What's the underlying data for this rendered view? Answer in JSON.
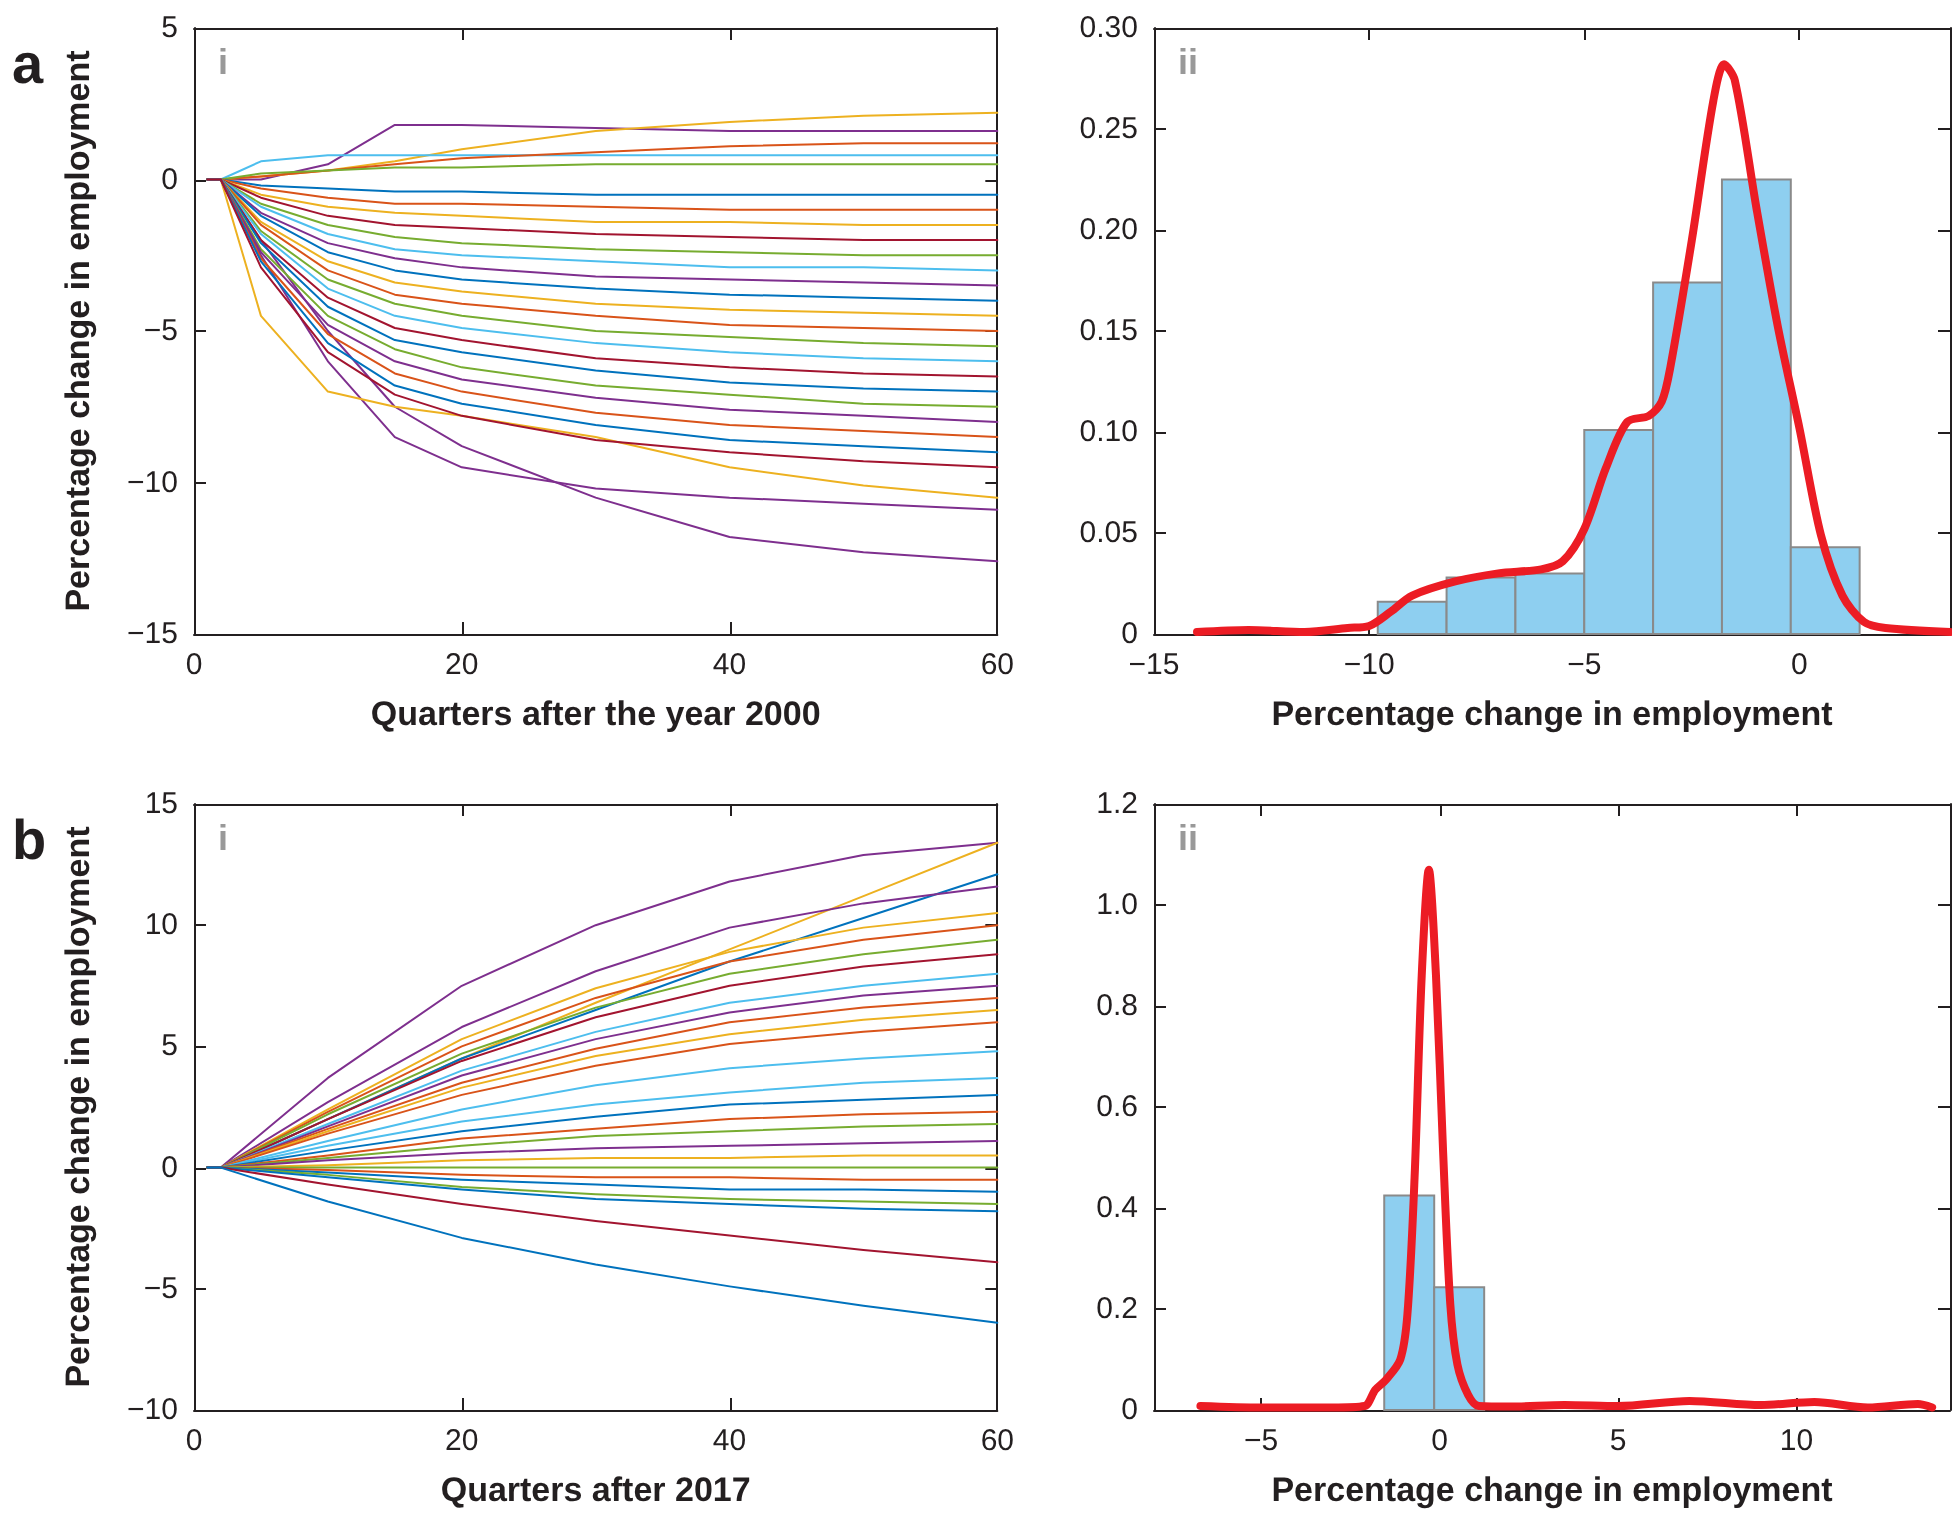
{
  "chart_data": [
    {
      "type": "line",
      "xlabel": "Quarters after the year 2000",
      "ylabel": "Percentage change in employment",
      "annotations": [
        "a",
        "i"
      ],
      "xlim": [
        0,
        60
      ],
      "xticks": [
        0,
        20,
        40,
        60
      ],
      "ylim": [
        -15,
        5
      ],
      "yticks": [
        {
          "value": -15,
          "label": "−15"
        },
        {
          "value": -10,
          "label": "−10"
        },
        {
          "value": -5,
          "label": "−5"
        },
        0,
        5
      ],
      "x": [
        1,
        2,
        5,
        10,
        15,
        20,
        30,
        40,
        50,
        60
      ],
      "series": [
        {
          "color": "#7e2f8e",
          "values": [
            0,
            0,
            -2.5,
            -6,
            -8.5,
            -9.5,
            -10.2,
            -10.5,
            -10.7,
            -10.9
          ]
        },
        {
          "color": "#7e2f8e",
          "values": [
            0,
            0,
            -2,
            -5,
            -7.5,
            -8.8,
            -10.5,
            -11.8,
            -12.3,
            -12.6
          ]
        },
        {
          "color": "#edb120",
          "values": [
            0,
            0,
            -4.5,
            -7,
            -7.5,
            -7.8,
            -8.5,
            -9.5,
            -10.1,
            -10.5
          ]
        },
        {
          "color": "#7e2f8e",
          "values": [
            0,
            0,
            0,
            0.5,
            1.8,
            1.8,
            1.7,
            1.6,
            1.6,
            1.6
          ]
        },
        {
          "color": "#edb120",
          "values": [
            0,
            0,
            0.1,
            0.3,
            0.6,
            1,
            1.6,
            1.9,
            2.1,
            2.2
          ]
        },
        {
          "color": "#4dbeee",
          "values": [
            0,
            0,
            0.6,
            0.8,
            0.8,
            0.8,
            0.8,
            0.8,
            0.8,
            0.8
          ]
        },
        {
          "color": "#d95319",
          "values": [
            0,
            0,
            0.1,
            0.3,
            0.5,
            0.7,
            0.9,
            1.1,
            1.2,
            1.2
          ]
        },
        {
          "color": "#77ac30",
          "values": [
            0,
            0,
            0.2,
            0.3,
            0.4,
            0.4,
            0.5,
            0.5,
            0.5,
            0.5
          ]
        },
        {
          "color": "#0072bd",
          "values": [
            0,
            0,
            -0.2,
            -0.3,
            -0.4,
            -0.4,
            -0.5,
            -0.5,
            -0.5,
            -0.5
          ]
        },
        {
          "color": "#d95319",
          "values": [
            0,
            0,
            -0.3,
            -0.6,
            -0.8,
            -0.8,
            -0.9,
            -1,
            -1,
            -1
          ]
        },
        {
          "color": "#edb120",
          "values": [
            0,
            0,
            -0.5,
            -0.9,
            -1.1,
            -1.2,
            -1.4,
            -1.4,
            -1.5,
            -1.5
          ]
        },
        {
          "color": "#a2142f",
          "values": [
            0,
            0,
            -0.6,
            -1.2,
            -1.5,
            -1.6,
            -1.8,
            -1.9,
            -2,
            -2
          ]
        },
        {
          "color": "#77ac30",
          "values": [
            0,
            0,
            -0.8,
            -1.5,
            -1.9,
            -2.1,
            -2.3,
            -2.4,
            -2.5,
            -2.5
          ]
        },
        {
          "color": "#4dbeee",
          "values": [
            0,
            0,
            -0.9,
            -1.8,
            -2.3,
            -2.5,
            -2.7,
            -2.9,
            -2.9,
            -3
          ]
        },
        {
          "color": "#7e2f8e",
          "values": [
            0,
            0,
            -1.1,
            -2.1,
            -2.6,
            -2.9,
            -3.2,
            -3.3,
            -3.4,
            -3.5
          ]
        },
        {
          "color": "#0072bd",
          "values": [
            0,
            0,
            -1.2,
            -2.4,
            -3,
            -3.3,
            -3.6,
            -3.8,
            -3.9,
            -4
          ]
        },
        {
          "color": "#edb120",
          "values": [
            0,
            0,
            -1.4,
            -2.7,
            -3.4,
            -3.7,
            -4.1,
            -4.3,
            -4.4,
            -4.5
          ]
        },
        {
          "color": "#d95319",
          "values": [
            0,
            0,
            -1.5,
            -3,
            -3.8,
            -4.1,
            -4.5,
            -4.8,
            -4.9,
            -5
          ]
        },
        {
          "color": "#77ac30",
          "values": [
            0,
            0,
            -1.7,
            -3.3,
            -4.1,
            -4.5,
            -5,
            -5.2,
            -5.4,
            -5.5
          ]
        },
        {
          "color": "#4dbeee",
          "values": [
            0,
            0,
            -1.8,
            -3.6,
            -4.5,
            -4.9,
            -5.4,
            -5.7,
            -5.9,
            -6
          ]
        },
        {
          "color": "#a2142f",
          "values": [
            0,
            0,
            -2,
            -3.9,
            -4.9,
            -5.3,
            -5.9,
            -6.2,
            -6.4,
            -6.5
          ]
        },
        {
          "color": "#0072bd",
          "values": [
            0,
            0,
            -2.1,
            -4.2,
            -5.3,
            -5.7,
            -6.3,
            -6.7,
            -6.9,
            -7
          ]
        },
        {
          "color": "#77ac30",
          "values": [
            0,
            0,
            -2.3,
            -4.5,
            -5.6,
            -6.2,
            -6.8,
            -7.1,
            -7.4,
            -7.5
          ]
        },
        {
          "color": "#7e2f8e",
          "values": [
            0,
            0,
            -2.4,
            -4.8,
            -6,
            -6.6,
            -7.2,
            -7.6,
            -7.8,
            -8
          ]
        },
        {
          "color": "#d95319",
          "values": [
            0,
            0,
            -2.6,
            -5.1,
            -6.4,
            -7,
            -7.7,
            -8.1,
            -8.3,
            -8.5
          ]
        },
        {
          "color": "#0072bd",
          "values": [
            0,
            0,
            -2.7,
            -5.4,
            -6.8,
            -7.4,
            -8.1,
            -8.6,
            -8.8,
            -9
          ]
        },
        {
          "color": "#a2142f",
          "values": [
            0,
            0,
            -2.9,
            -5.7,
            -7.1,
            -7.8,
            -8.6,
            -9,
            -9.3,
            -9.5
          ]
        }
      ]
    },
    {
      "type": "histogram",
      "xlabel": "Percentage change in employment",
      "annotations": [
        "ii"
      ],
      "xlim": [
        -15,
        3.5
      ],
      "xticks": [
        {
          "value": -15,
          "label": "−15"
        },
        {
          "value": -10,
          "label": "−10"
        },
        {
          "value": -5,
          "label": "−5"
        },
        0
      ],
      "ylim": [
        0,
        0.3
      ],
      "yticks": [
        0,
        0.05,
        {
          "value": 0.1,
          "label": "0.10"
        },
        0.15,
        {
          "value": 0.2,
          "label": "0.20"
        },
        0.25,
        {
          "value": 0.3,
          "label": "0.30"
        }
      ],
      "series": [
        {
          "type": "histogram",
          "color": "#8ecff0",
          "bins": [
            -9.8,
            -8.2,
            -6.6,
            -5,
            -3.4,
            -1.8,
            -0.2,
            1.4
          ],
          "values": [
            0.016,
            0.028,
            0.03,
            0.101,
            0.174,
            0.225,
            0.043
          ]
        },
        {
          "type": "line",
          "color": "#ec1c24",
          "x": [
            -14,
            -12.8,
            -11.5,
            -10.5,
            -10,
            -9.5,
            -9,
            -8,
            -7,
            -6,
            -5.5,
            -5,
            -4.5,
            -4,
            -3.5,
            -3.2,
            -3,
            -2.5,
            -2,
            -1.75,
            -1.5,
            -1,
            -0.5,
            0,
            0.5,
            1,
            1.5,
            2,
            3.5
          ],
          "values": [
            0.001,
            0.002,
            0.001,
            0.003,
            0.004,
            0.011,
            0.019,
            0.026,
            0.03,
            0.032,
            0.036,
            0.052,
            0.082,
            0.105,
            0.108,
            0.115,
            0.132,
            0.195,
            0.264,
            0.282,
            0.274,
            0.211,
            0.152,
            0.102,
            0.049,
            0.019,
            0.006,
            0.003,
            0.001
          ]
        }
      ]
    },
    {
      "type": "line",
      "xlabel": "Quarters after 2017",
      "ylabel": "Percentage change in employment",
      "annotations": [
        "b",
        "i"
      ],
      "xlim": [
        0,
        60
      ],
      "xticks": [
        0,
        20,
        40,
        60
      ],
      "ylim": [
        -10,
        15
      ],
      "yticks": [
        {
          "value": -10,
          "label": "−10"
        },
        {
          "value": -5,
          "label": "−5"
        },
        0,
        5,
        10,
        15
      ],
      "x": [
        1,
        2,
        10,
        20,
        30,
        40,
        50,
        60
      ],
      "series": [
        {
          "color": "#7e2f8e",
          "values": [
            0,
            0,
            3.7,
            7.5,
            10,
            11.8,
            12.9,
            13.4
          ]
        },
        {
          "color": "#edb120",
          "values": [
            0,
            0,
            2,
            4.5,
            6.8,
            9,
            11.2,
            13.4
          ]
        },
        {
          "color": "#0072bd",
          "values": [
            0,
            0,
            2,
            4.5,
            6.5,
            8.5,
            10.3,
            12.1
          ]
        },
        {
          "color": "#7e2f8e",
          "values": [
            0,
            0,
            2.7,
            5.8,
            8.1,
            9.9,
            10.9,
            11.6
          ]
        },
        {
          "color": "#edb120",
          "values": [
            0,
            0,
            2.4,
            5.3,
            7.4,
            8.9,
            9.9,
            10.5
          ]
        },
        {
          "color": "#d95319",
          "values": [
            0,
            0,
            2.3,
            5,
            7,
            8.5,
            9.4,
            10
          ]
        },
        {
          "color": "#77ac30",
          "values": [
            0,
            0,
            2.2,
            4.7,
            6.6,
            8,
            8.8,
            9.4
          ]
        },
        {
          "color": "#a2142f",
          "values": [
            0,
            0,
            2,
            4.4,
            6.2,
            7.5,
            8.3,
            8.8
          ]
        },
        {
          "color": "#4dbeee",
          "values": [
            0,
            0,
            1.8,
            4,
            5.6,
            6.8,
            7.5,
            8
          ]
        },
        {
          "color": "#7e2f8e",
          "values": [
            0,
            0,
            1.7,
            3.8,
            5.3,
            6.4,
            7.1,
            7.5
          ]
        },
        {
          "color": "#d95319",
          "values": [
            0,
            0,
            1.6,
            3.5,
            4.9,
            6,
            6.6,
            7
          ]
        },
        {
          "color": "#edb120",
          "values": [
            0,
            0,
            1.5,
            3.3,
            4.6,
            5.5,
            6.1,
            6.5
          ]
        },
        {
          "color": "#d95319",
          "values": [
            0,
            0,
            1.4,
            3,
            4.2,
            5.1,
            5.6,
            6
          ]
        },
        {
          "color": "#4dbeee",
          "values": [
            0,
            0,
            1.1,
            2.4,
            3.4,
            4.1,
            4.5,
            4.8
          ]
        },
        {
          "color": "#4dbeee",
          "values": [
            0,
            0,
            0.9,
            1.9,
            2.6,
            3.1,
            3.5,
            3.7
          ]
        },
        {
          "color": "#0072bd",
          "values": [
            0,
            0,
            0.7,
            1.5,
            2.1,
            2.6,
            2.8,
            3
          ]
        },
        {
          "color": "#d95319",
          "values": [
            0,
            0,
            0.5,
            1.2,
            1.6,
            2,
            2.2,
            2.3
          ]
        },
        {
          "color": "#77ac30",
          "values": [
            0,
            0,
            0.4,
            0.9,
            1.3,
            1.5,
            1.7,
            1.8
          ]
        },
        {
          "color": "#7e2f8e",
          "values": [
            0,
            0,
            0.3,
            0.6,
            0.8,
            0.9,
            1,
            1.1
          ]
        },
        {
          "color": "#edb120",
          "values": [
            0,
            0,
            0.1,
            0.3,
            0.4,
            0.4,
            0.5,
            0.5
          ]
        },
        {
          "color": "#77ac30",
          "values": [
            0,
            0,
            0,
            0,
            0,
            0,
            0,
            0
          ]
        },
        {
          "color": "#d95319",
          "values": [
            0,
            0,
            -0.1,
            -0.3,
            -0.4,
            -0.4,
            -0.5,
            -0.5
          ]
        },
        {
          "color": "#0072bd",
          "values": [
            0,
            0,
            -0.2,
            -0.5,
            -0.7,
            -0.9,
            -0.9,
            -1
          ]
        },
        {
          "color": "#77ac30",
          "values": [
            0,
            0,
            -0.3,
            -0.8,
            -1.1,
            -1.3,
            -1.4,
            -1.5
          ]
        },
        {
          "color": "#0072bd",
          "values": [
            0,
            0,
            -0.4,
            -0.9,
            -1.3,
            -1.5,
            -1.7,
            -1.8
          ]
        },
        {
          "color": "#a2142f",
          "values": [
            0,
            0,
            -0.7,
            -1.5,
            -2.2,
            -2.8,
            -3.4,
            -3.9
          ]
        },
        {
          "color": "#0072bd",
          "values": [
            0,
            0,
            -1.4,
            -2.9,
            -4,
            -4.9,
            -5.7,
            -6.4
          ]
        }
      ]
    },
    {
      "type": "histogram",
      "xlabel": "Percentage change in employment",
      "annotations": [
        "ii"
      ],
      "xlim": [
        -8,
        14.3
      ],
      "xticks": [
        {
          "value": -5,
          "label": "−5"
        },
        0,
        5,
        10
      ],
      "ylim": [
        0,
        1.2
      ],
      "yticks": [
        0,
        0.2,
        0.4,
        0.6,
        0.8,
        {
          "value": 1,
          "label": "1.0"
        },
        1.2
      ],
      "series": [
        {
          "type": "histogram",
          "color": "#8ecff0",
          "bins": [
            -1.55,
            -0.15,
            1.25
          ],
          "values": [
            0.425,
            0.243
          ]
        },
        {
          "type": "line",
          "color": "#ec1c24",
          "x": [
            -6.7,
            -5,
            -3,
            -2.1,
            -1.8,
            -1.5,
            -1.1,
            -0.9,
            -0.7,
            -0.5,
            -0.3,
            -0.1,
            0.1,
            0.3,
            0.5,
            0.8,
            1.1,
            2,
            3.5,
            5,
            7,
            9,
            10.5,
            12,
            13.4,
            13.8
          ],
          "values": [
            0.008,
            0.005,
            0.005,
            0.008,
            0.04,
            0.06,
            0.1,
            0.19,
            0.46,
            0.86,
            1.07,
            0.86,
            0.51,
            0.21,
            0.09,
            0.03,
            0.008,
            0.007,
            0.01,
            0.008,
            0.018,
            0.01,
            0.016,
            0.005,
            0.012,
            0.005
          ]
        }
      ]
    }
  ]
}
